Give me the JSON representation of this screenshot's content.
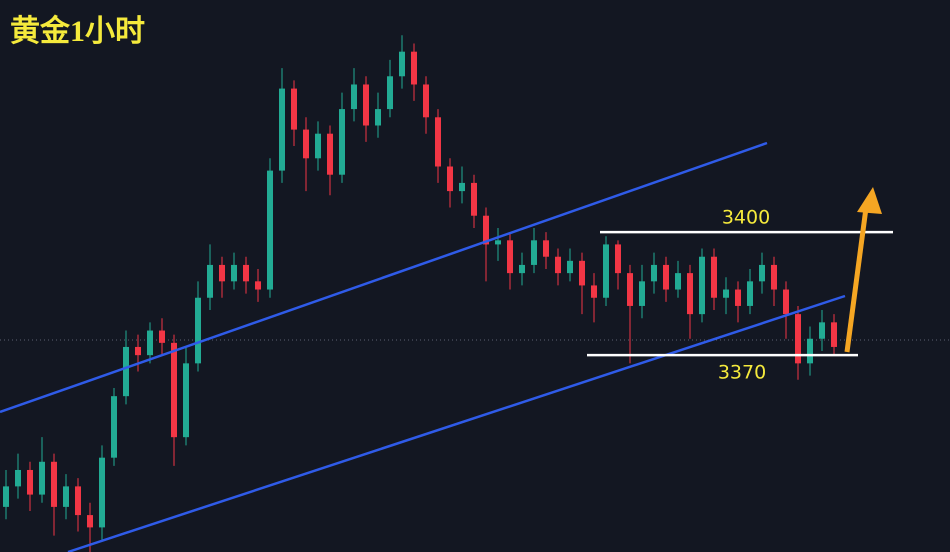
{
  "chart_data": {
    "type": "candlestick",
    "title": "黄金1小时",
    "up_color": "#22ab94",
    "down_color": "#f23645",
    "ylim": [
      3322,
      3456.6
    ],
    "levels": [
      3400,
      3370
    ],
    "open": [
      3333,
      3338,
      3342,
      3336,
      3344,
      3333,
      3338,
      3331,
      3328,
      3345,
      3360,
      3372,
      3370,
      3376,
      3373,
      3350,
      3368,
      3384,
      3392,
      3388,
      3392,
      3388,
      3386,
      3415,
      3435,
      3425,
      3418,
      3424,
      3414,
      3430,
      3436,
      3426,
      3430,
      3438,
      3444,
      3436,
      3428,
      3416,
      3410,
      3412,
      3404,
      3397,
      3398,
      3390,
      3392,
      3398,
      3394,
      3390,
      3393,
      3387,
      3384,
      3397,
      3390,
      3382,
      3388,
      3392,
      3386,
      3390,
      3380,
      3394,
      3384,
      3386,
      3382,
      3388,
      3392,
      3386,
      3380,
      3368,
      3374,
      3378
    ],
    "high": [
      3342,
      3346,
      3344,
      3350,
      3346,
      3341,
      3340,
      3334,
      3348,
      3362,
      3376,
      3375,
      3378,
      3379,
      3375,
      3372,
      3388,
      3397,
      3394,
      3395,
      3394,
      3391,
      3418,
      3440,
      3437,
      3428,
      3427,
      3426,
      3434,
      3440,
      3438,
      3434,
      3442,
      3448,
      3446,
      3438,
      3430,
      3418,
      3416,
      3414,
      3406,
      3401,
      3400,
      3395,
      3401,
      3400,
      3396,
      3396,
      3395,
      3390,
      3399,
      3398,
      3392,
      3392,
      3395,
      3394,
      3393,
      3392,
      3396,
      3396,
      3389,
      3388,
      3391,
      3395,
      3394,
      3388,
      3382,
      3377,
      3381,
      3380
    ],
    "low": [
      3330,
      3335,
      3332,
      3334,
      3326,
      3330,
      3327,
      3322,
      3325,
      3343,
      3358,
      3366,
      3368,
      3370,
      3343,
      3348,
      3366,
      3381,
      3384,
      3386,
      3385,
      3383,
      3384,
      3412,
      3421,
      3410,
      3415,
      3409,
      3412,
      3427,
      3422,
      3423,
      3428,
      3435,
      3432,
      3424,
      3412,
      3406,
      3407,
      3401,
      3388,
      3393,
      3386,
      3387,
      3390,
      3391,
      3387,
      3388,
      3380,
      3378,
      3382,
      3386,
      3368,
      3379,
      3385,
      3383,
      3384,
      3374,
      3378,
      3381,
      3380,
      3378,
      3380,
      3385,
      3382,
      3374,
      3364,
      3365,
      3371,
      3370
    ],
    "close": [
      3338,
      3342,
      3336,
      3344,
      3333,
      3338,
      3331,
      3328,
      3345,
      3360,
      3372,
      3370,
      3376,
      3373,
      3350,
      3368,
      3384,
      3392,
      3388,
      3392,
      3388,
      3386,
      3415,
      3435,
      3425,
      3418,
      3424,
      3414,
      3430,
      3436,
      3426,
      3430,
      3438,
      3444,
      3436,
      3428,
      3416,
      3410,
      3412,
      3404,
      3397,
      3398,
      3390,
      3392,
      3398,
      3394,
      3390,
      3393,
      3387,
      3384,
      3397,
      3390,
      3382,
      3388,
      3392,
      3386,
      3390,
      3380,
      3394,
      3384,
      3386,
      3382,
      3388,
      3392,
      3386,
      3380,
      3368,
      3374,
      3378,
      3372
    ]
  }
}
